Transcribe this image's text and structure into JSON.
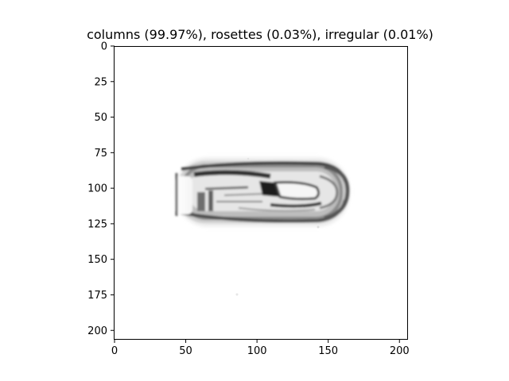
{
  "title": "columns (99.97%), rosettes (0.03%), irregular (0.01%)",
  "image_extent": {
    "x": [
      0,
      206
    ],
    "y": [
      206,
      0
    ]
  },
  "x_ticks": [
    {
      "value": 0,
      "label": "0"
    },
    {
      "value": 50,
      "label": "50"
    },
    {
      "value": 100,
      "label": "100"
    },
    {
      "value": 150,
      "label": "150"
    },
    {
      "value": 200,
      "label": "200"
    }
  ],
  "y_ticks": [
    {
      "value": 0,
      "label": "0"
    },
    {
      "value": 25,
      "label": "25"
    },
    {
      "value": 50,
      "label": "50"
    },
    {
      "value": 75,
      "label": "75"
    },
    {
      "value": 100,
      "label": "100"
    },
    {
      "value": 125,
      "label": "125"
    },
    {
      "value": 150,
      "label": "150"
    },
    {
      "value": 175,
      "label": "175"
    },
    {
      "value": 200,
      "label": "200"
    }
  ],
  "image_content": {
    "subject": "ice-crystal-column",
    "colormap": "grayscale"
  }
}
